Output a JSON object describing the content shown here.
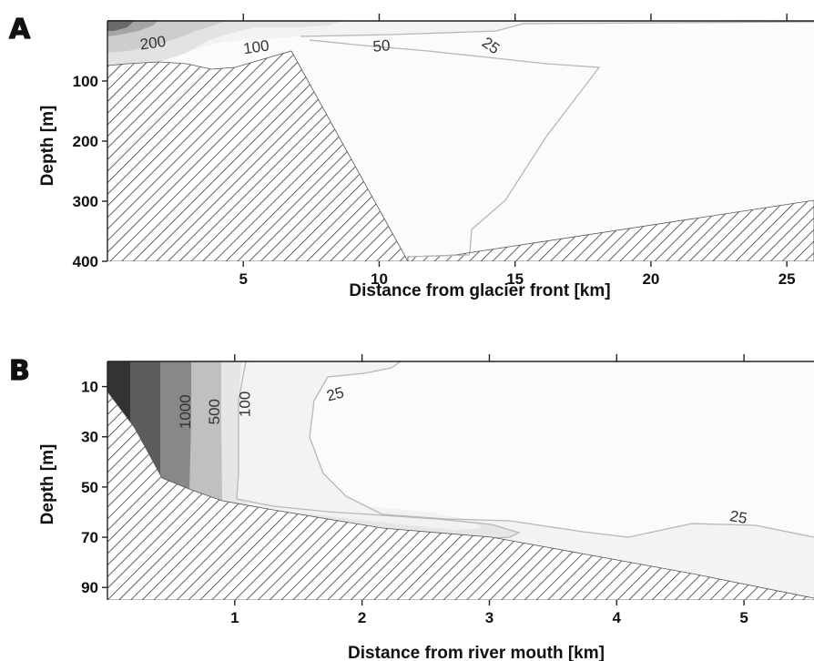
{
  "chart_data": [
    {
      "type": "contour",
      "panel_label": "A",
      "xlabel": "Distance from glacier front [km]",
      "ylabel": "Depth [m]",
      "xlim": [
        0,
        26
      ],
      "ylim": [
        400,
        0
      ],
      "x_ticks": [
        5,
        10,
        15,
        20,
        25
      ],
      "y_ticks": [
        100,
        200,
        300,
        400
      ],
      "top_ticks": [
        5,
        10,
        15,
        20,
        25
      ],
      "contour_labels": [
        {
          "text": "200",
          "x": 1.7,
          "depth": 45
        },
        {
          "text": "100",
          "x": 5.5,
          "depth": 52
        },
        {
          "text": "50",
          "x": 10.1,
          "depth": 50
        },
        {
          "text": "25",
          "x": 14.0,
          "depth": 48
        }
      ],
      "levels": [
        25,
        50,
        100,
        200
      ],
      "fill_colors": [
        "#f6f6f6",
        "#e8e8e8",
        "#d0d0d0",
        "#a8a8a8",
        "#6d6d6d"
      ],
      "bathymetry_hatched": true
    },
    {
      "type": "contour",
      "panel_label": "B",
      "xlabel": "Distance from river mouth [km]",
      "ylabel": "Depth [m]",
      "xlim": [
        0,
        5.55
      ],
      "ylim": [
        95,
        0
      ],
      "x_ticks": [
        1,
        2,
        3,
        4,
        5
      ],
      "y_ticks": [
        10,
        30,
        50,
        70,
        90
      ],
      "top_ticks": [
        1,
        2,
        3,
        4,
        5
      ],
      "contour_labels": [
        {
          "text": "1000",
          "x": 0.65,
          "depth": 20
        },
        {
          "text": "500",
          "x": 0.88,
          "depth": 20
        },
        {
          "text": "100",
          "x": 1.12,
          "depth": 17
        },
        {
          "text": "25",
          "x": 1.8,
          "depth": 15
        },
        {
          "text": "25",
          "x": 4.95,
          "depth": 64
        }
      ],
      "levels": [
        25,
        100,
        500,
        1000
      ],
      "fill_colors": [
        "#f6f6f6",
        "#e8e8e8",
        "#c2c2c2",
        "#8a8a8a",
        "#5c5c5c",
        "#353535"
      ],
      "bathymetry_hatched": true
    }
  ]
}
